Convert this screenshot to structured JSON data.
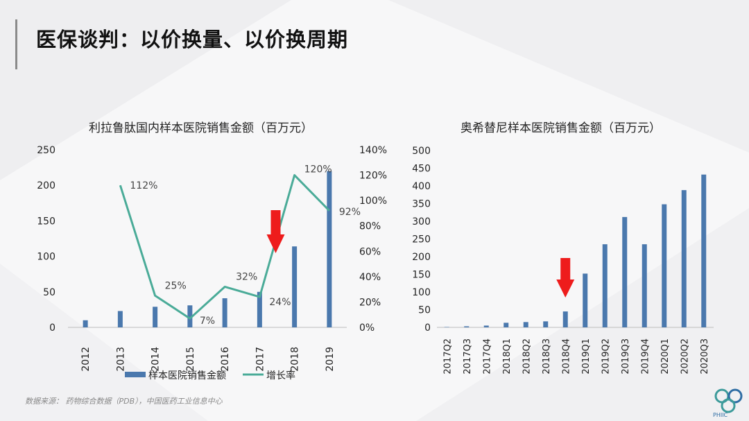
{
  "page": {
    "title": "医保谈判：以价换量、以价换周期",
    "source": "数据来源： 药物综合数据（PDB），中国医药工业信息中心",
    "logo_text": "PHIIC"
  },
  "colors": {
    "bar": "#4a78ad",
    "line": "#4aab98",
    "arrow": "#ee1c1c"
  },
  "chart_data": [
    {
      "type": "bar+line",
      "title": "利拉鲁肽国内样本医院销售金额（百万元）",
      "categories": [
        "2012",
        "2013",
        "2014",
        "2015",
        "2016",
        "2017",
        "2018",
        "2019"
      ],
      "series": [
        {
          "name": "样本医院销售金额",
          "type": "bar",
          "axis": "left",
          "values": [
            10,
            23,
            29,
            31,
            41,
            50,
            114,
            220
          ]
        },
        {
          "name": "增长率",
          "type": "line",
          "axis": "right",
          "values": [
            null,
            1.12,
            0.25,
            0.07,
            0.32,
            0.24,
            1.2,
            0.92
          ],
          "labels": [
            "",
            "112%",
            "25%",
            "7%",
            "32%",
            "24%",
            "120%",
            "92%"
          ]
        }
      ],
      "y_left": {
        "min": 0,
        "max": 250,
        "ticks": [
          "0",
          "50",
          "100",
          "150",
          "200",
          "250"
        ]
      },
      "y_right": {
        "min": 0,
        "max": 1.4,
        "ticks": [
          "0%",
          "20%",
          "40%",
          "60%",
          "80%",
          "100%",
          "120%",
          "140%"
        ]
      },
      "annotation": "red downward arrow between 2017 and 2018",
      "legend": {
        "position": "bottom",
        "bar": "样本医院销售金额",
        "line": "增长率"
      },
      "grid": false
    },
    {
      "type": "bar",
      "title": "奥希替尼样本医院销售金额（百万元）",
      "categories": [
        "2017Q2",
        "2017Q3",
        "2017Q4",
        "2018Q1",
        "2018Q2",
        "2018Q3",
        "2018Q4",
        "2019Q1",
        "2019Q2",
        "2019Q3",
        "2019Q4",
        "2020Q1",
        "2020Q2",
        "2020Q3"
      ],
      "values": [
        1,
        3,
        5,
        13,
        15,
        17,
        45,
        152,
        235,
        312,
        235,
        348,
        388,
        432
      ],
      "y": {
        "min": 0,
        "max": 500,
        "ticks": [
          "0",
          "50",
          "100",
          "150",
          "200",
          "250",
          "300",
          "350",
          "400",
          "450",
          "500"
        ]
      },
      "annotation": "red downward arrow above 2018Q4",
      "grid": false
    }
  ]
}
